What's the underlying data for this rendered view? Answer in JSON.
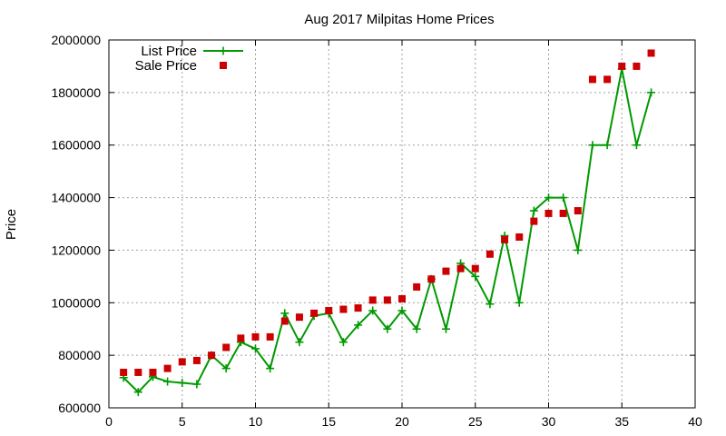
{
  "chart_data": {
    "type": "line",
    "title": "Aug 2017 Milpitas Home Prices",
    "xlabel": "",
    "ylabel": "Price",
    "xlim": [
      0,
      40
    ],
    "ylim": [
      600000,
      2000000
    ],
    "xticks": [
      0,
      5,
      10,
      15,
      20,
      25,
      30,
      35,
      40
    ],
    "yticks": [
      600000,
      800000,
      1000000,
      1200000,
      1400000,
      1600000,
      1800000,
      2000000
    ],
    "grid": true,
    "legend_position": "top-left",
    "x": [
      1,
      2,
      3,
      4,
      5,
      6,
      7,
      8,
      9,
      10,
      11,
      12,
      13,
      14,
      15,
      16,
      17,
      18,
      19,
      20,
      21,
      22,
      23,
      24,
      25,
      26,
      27,
      28,
      29,
      30,
      31,
      32,
      33,
      34,
      35,
      36,
      37
    ],
    "series": [
      {
        "name": "List Price",
        "style": "linespoints",
        "color": "#009900",
        "values": [
          715000,
          660000,
          718000,
          700000,
          695000,
          690000,
          800000,
          750000,
          850000,
          825000,
          750000,
          960000,
          850000,
          950000,
          960000,
          850000,
          915000,
          970000,
          900000,
          970000,
          900000,
          1090000,
          900000,
          1150000,
          1100000,
          995000,
          1255000,
          1000000,
          1350000,
          1400000,
          1400000,
          1200000,
          1600000,
          1600000,
          1890000,
          1600000,
          1800000
        ]
      },
      {
        "name": "Sale Price",
        "style": "points",
        "color": "#cc0000",
        "values": [
          735000,
          735000,
          735000,
          750000,
          775000,
          780000,
          800000,
          830000,
          865000,
          870000,
          870000,
          930000,
          945000,
          960000,
          970000,
          975000,
          980000,
          1010000,
          1010000,
          1015000,
          1060000,
          1090000,
          1120000,
          1130000,
          1130000,
          1185000,
          1240000,
          1250000,
          1310000,
          1340000,
          1340000,
          1350000,
          1850000,
          1850000,
          1900000,
          1900000,
          1950000
        ]
      }
    ]
  }
}
